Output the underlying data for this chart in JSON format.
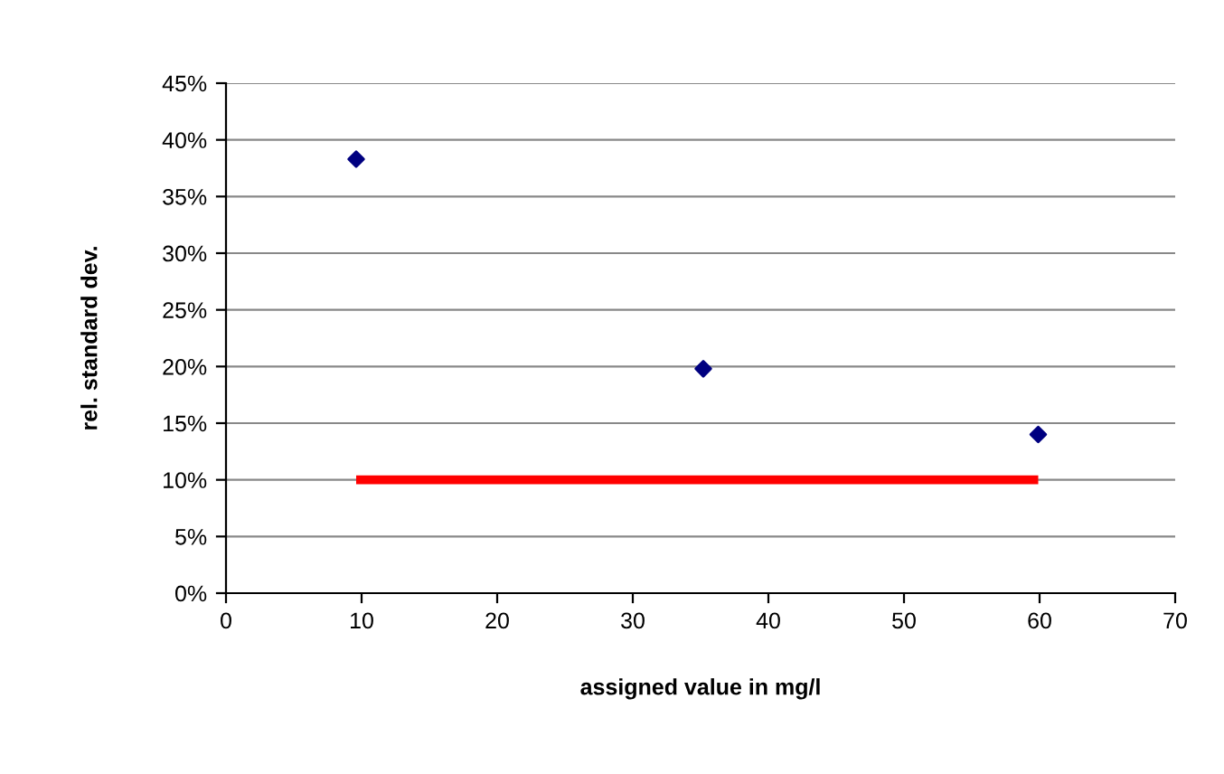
{
  "chart_data": {
    "type": "scatter",
    "xlabel": "assigned value in mg/l",
    "ylabel": "rel. standard dev.",
    "series": [
      {
        "color": "#000080",
        "marker": "diamond",
        "x": [
          9.6,
          35.2,
          59.9
        ],
        "values": [
          38.3,
          19.8,
          14.0
        ]
      },
      {
        "type": "line",
        "color": "#ff0000",
        "marker": "none",
        "x": [
          9.6,
          59.9
        ],
        "values": [
          10,
          10
        ]
      }
    ],
    "xlim": [
      0,
      70
    ],
    "xticks": [
      0,
      10,
      20,
      30,
      40,
      50,
      60,
      70
    ],
    "ylim": [
      0,
      45
    ],
    "yticks": [
      {
        "value": 0,
        "label": "0%"
      },
      {
        "value": 5,
        "label": "5%"
      },
      {
        "value": 10,
        "label": "10%"
      },
      {
        "value": 15,
        "label": "15%"
      },
      {
        "value": 20,
        "label": "20%"
      },
      {
        "value": 25,
        "label": "25%"
      },
      {
        "value": 30,
        "label": "30%"
      },
      {
        "value": 35,
        "label": "35%"
      },
      {
        "value": 40,
        "label": "40%"
      },
      {
        "value": 45,
        "label": "45%"
      }
    ],
    "grid": "y",
    "legend": false
  }
}
